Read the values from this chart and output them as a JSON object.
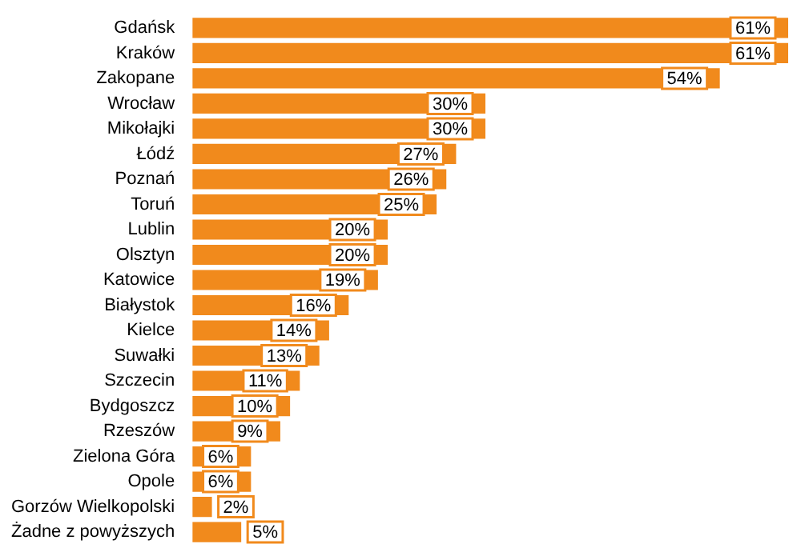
{
  "chart_data": {
    "type": "bar",
    "orientation": "horizontal",
    "legend": false,
    "tick_labels": "y",
    "value_labels": [
      "61%",
      "61%",
      "54%",
      "30%",
      "30%",
      "27%",
      "26%",
      "25%",
      "20%",
      "20%",
      "19%",
      "16%",
      "14%",
      "13%",
      "11%",
      "10%",
      "9%",
      "6%",
      "6%",
      "2%",
      "5%"
    ],
    "categories": [
      "Gdańsk",
      "Kraków",
      "Zakopane",
      "Wrocław",
      "Mikołajki",
      "Łódź",
      "Poznań",
      "Toruń",
      "Lublin",
      "Olsztyn",
      "Katowice",
      "Białystok",
      "Kielce",
      "Suwałki",
      "Szczecin",
      "Bydgoszcz",
      "Rzeszów",
      "Zielona Góra",
      "Opole",
      "Gorzów Wielkopolski",
      "Żadne z powyższych"
    ],
    "values": [
      61,
      61,
      54,
      30,
      30,
      27,
      26,
      25,
      20,
      20,
      19,
      16,
      14,
      13,
      11,
      10,
      9,
      6,
      6,
      2,
      5
    ],
    "color": "#f18a1c"
  }
}
